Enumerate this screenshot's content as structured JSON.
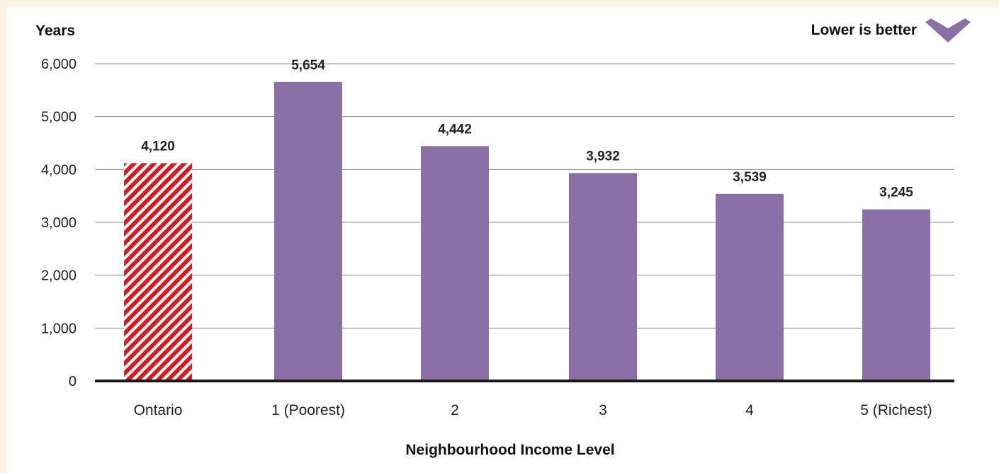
{
  "chart_data": {
    "type": "bar",
    "ylabel": "Years",
    "xlabel": "Neighbourhood Income Level",
    "note": "Lower is better",
    "categories": [
      "Ontario",
      "1 (Poorest)",
      "2",
      "3",
      "4",
      "5 (Richest)"
    ],
    "values": [
      4120,
      5654,
      4442,
      3932,
      3539,
      3245
    ],
    "value_labels": [
      "4,120",
      "5,654",
      "4,442",
      "3,932",
      "3,539",
      "3,245"
    ],
    "yticks": [
      0,
      1000,
      2000,
      3000,
      4000,
      5000,
      6000
    ],
    "ytick_labels": [
      "0",
      "1,000",
      "2,000",
      "3,000",
      "4,000",
      "5,000",
      "6,000"
    ],
    "ylim": [
      0,
      6000
    ],
    "grid": true,
    "legend": "none",
    "colors": {
      "ontario_stripe_red": "#cc2027",
      "ontario_stripe_light": "#ffffff",
      "bar_purple": "#8a70a5",
      "chevron_purple": "#8a70a5",
      "gridline": "#888888",
      "axis": "#1a1a1a"
    }
  }
}
